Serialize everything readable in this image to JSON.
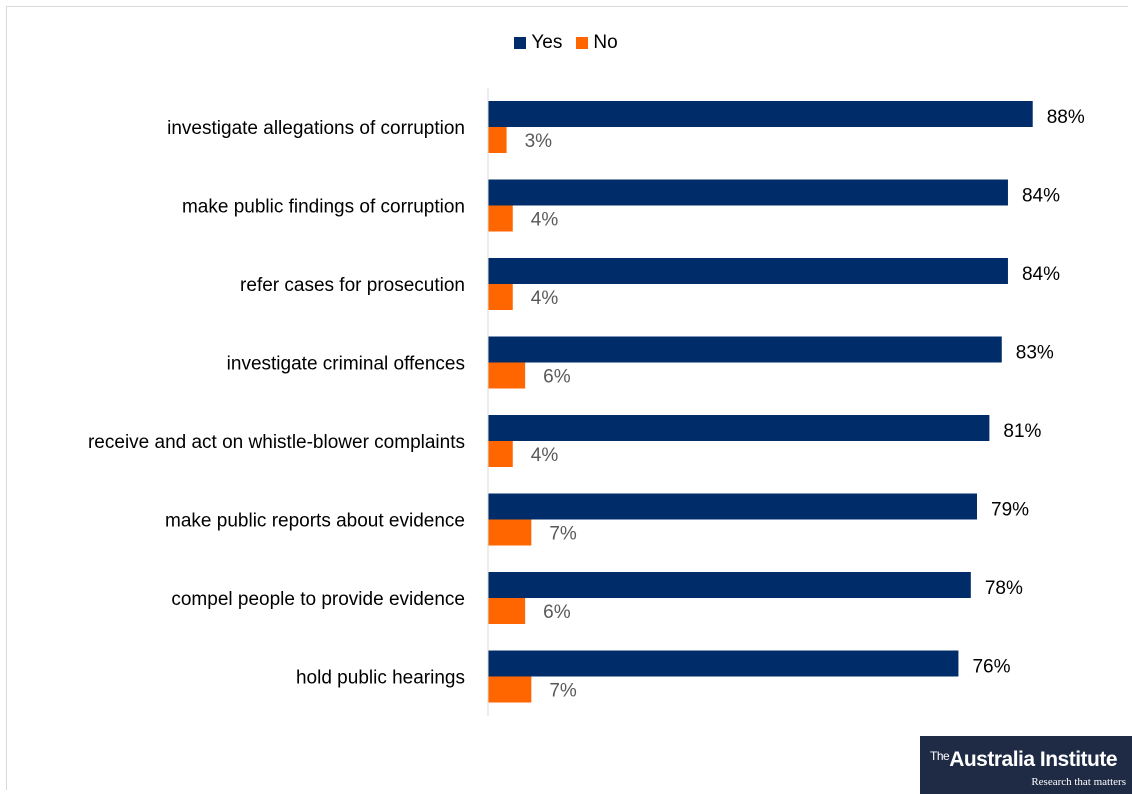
{
  "chart_data": {
    "type": "bar",
    "orientation": "horizontal",
    "categories": [
      "investigate allegations of corruption",
      "make public findings of corruption",
      "refer cases for prosecution",
      "investigate criminal offences",
      "receive and act on whistle-blower complaints",
      "make public reports about evidence",
      "compel people to provide evidence",
      "hold public hearings"
    ],
    "series": [
      {
        "name": "Yes",
        "color": "#002d6a",
        "values": [
          88,
          84,
          84,
          83,
          81,
          79,
          78,
          76
        ],
        "labels": [
          "88%",
          "84%",
          "84%",
          "83%",
          "81%",
          "79%",
          "78%",
          "76%"
        ]
      },
      {
        "name": "No",
        "color": "#ff6600",
        "values": [
          3,
          4,
          4,
          6,
          4,
          7,
          6,
          7
        ],
        "labels": [
          "3%",
          "4%",
          "4%",
          "6%",
          "4%",
          "7%",
          "6%",
          "7%"
        ]
      }
    ],
    "xlim": [
      0,
      100
    ],
    "grid": false,
    "legend_position": "top"
  },
  "logo": {
    "the": "The",
    "name": "Australia Institute",
    "tagline": "Research that matters"
  }
}
